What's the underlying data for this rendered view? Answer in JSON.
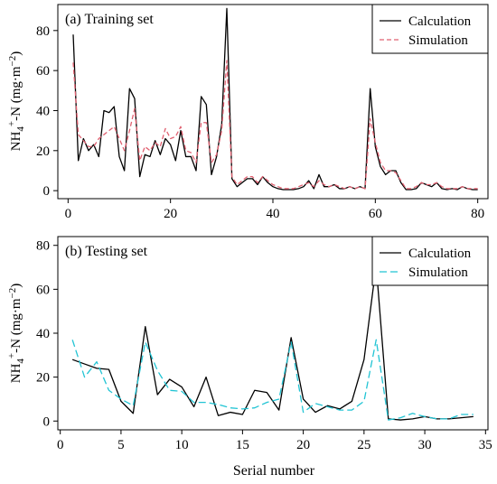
{
  "xlabel": "Serial number",
  "chart_data": [
    {
      "type": "line",
      "panel_label": "(a) Training set",
      "ylabel_parts": [
        "NH",
        "4",
        "+",
        "-N (mg·m",
        "−2",
        ")"
      ],
      "xlim": [
        -2,
        82
      ],
      "ylim": [
        -4,
        93
      ],
      "xticks": [
        0,
        20,
        40,
        60,
        80
      ],
      "yticks": [
        0,
        20,
        40,
        60,
        80
      ],
      "legend_position": "top-right",
      "series": [
        {
          "name": "Calculation",
          "color": "#000000",
          "dash": "",
          "x": [
            1,
            2,
            3,
            4,
            5,
            6,
            7,
            8,
            9,
            10,
            11,
            12,
            13,
            14,
            15,
            16,
            17,
            18,
            19,
            20,
            21,
            22,
            23,
            24,
            25,
            26,
            27,
            28,
            29,
            30,
            31,
            32,
            33,
            34,
            35,
            36,
            37,
            38,
            39,
            40,
            41,
            42,
            43,
            44,
            45,
            46,
            47,
            48,
            49,
            50,
            51,
            52,
            53,
            54,
            55,
            56,
            57,
            58,
            59,
            60,
            61,
            62,
            63,
            64,
            65,
            66,
            67,
            68,
            69,
            70,
            71,
            72,
            73,
            74,
            75,
            76,
            77,
            78,
            79,
            80
          ],
          "values": [
            78,
            15,
            26,
            20,
            23,
            17,
            40,
            39,
            42,
            17,
            10,
            51,
            46,
            7,
            18,
            17,
            25,
            18,
            26,
            23,
            15,
            30,
            17,
            17,
            10,
            47,
            43,
            8,
            17,
            33,
            91,
            6,
            2,
            4,
            6,
            6,
            3,
            7,
            4,
            2,
            1,
            0.5,
            0.5,
            0.5,
            1,
            2,
            5,
            1,
            8,
            2,
            2,
            3,
            1,
            1,
            2,
            1,
            2,
            1,
            51,
            22,
            12,
            8,
            10,
            10,
            4,
            0.5,
            0.5,
            1,
            4,
            3,
            2,
            4,
            1,
            0.5,
            1,
            0.5,
            2,
            1,
            0.5,
            0.5
          ]
        },
        {
          "name": "Simulation",
          "color": "#e06070",
          "dash": "5,3",
          "x": [
            1,
            2,
            3,
            4,
            5,
            6,
            7,
            8,
            9,
            10,
            11,
            12,
            13,
            14,
            15,
            16,
            17,
            18,
            19,
            20,
            21,
            22,
            23,
            24,
            25,
            26,
            27,
            28,
            29,
            30,
            31,
            32,
            33,
            34,
            35,
            36,
            37,
            38,
            39,
            40,
            41,
            42,
            43,
            44,
            45,
            46,
            47,
            48,
            49,
            50,
            51,
            52,
            53,
            54,
            55,
            56,
            57,
            58,
            59,
            60,
            61,
            62,
            63,
            64,
            65,
            66,
            67,
            68,
            69,
            70,
            71,
            72,
            73,
            74,
            75,
            76,
            77,
            78,
            79,
            80
          ],
          "values": [
            64,
            28,
            25,
            22,
            22,
            26,
            28,
            30,
            32,
            26,
            20,
            30,
            41,
            15,
            22,
            20,
            24,
            22,
            31,
            26,
            27,
            32,
            20,
            19,
            14,
            34,
            34,
            14,
            18,
            30,
            65,
            7,
            3,
            5,
            7,
            7,
            4,
            7,
            5,
            3,
            2,
            1,
            1,
            1,
            2,
            3,
            4,
            2,
            5,
            3,
            2,
            3,
            2,
            1,
            2,
            1,
            2,
            1,
            36,
            24,
            14,
            10,
            10,
            9,
            5,
            1,
            1,
            2,
            4,
            3,
            3,
            4,
            2,
            1,
            1,
            1,
            2,
            1,
            1,
            1
          ]
        }
      ]
    },
    {
      "type": "line",
      "panel_label": "(b) Testing set",
      "ylabel_parts": [
        "NH",
        "4",
        "+",
        "-N (mg·m",
        "−2",
        ")"
      ],
      "xlim": [
        -0.2,
        35.2
      ],
      "ylim": [
        -4,
        84
      ],
      "xticks": [
        0,
        5,
        10,
        15,
        20,
        25,
        30,
        35
      ],
      "yticks": [
        0,
        20,
        40,
        60,
        80
      ],
      "legend_position": "top-right",
      "series": [
        {
          "name": "Calculation",
          "color": "#000000",
          "dash": "",
          "x": [
            1,
            2,
            3,
            4,
            5,
            6,
            7,
            8,
            9,
            10,
            11,
            12,
            13,
            14,
            15,
            16,
            17,
            18,
            19,
            20,
            21,
            22,
            23,
            24,
            25,
            26,
            27,
            28,
            29,
            30,
            31,
            32,
            33,
            34
          ],
          "values": [
            28,
            26,
            24,
            23.5,
            9,
            3.5,
            43,
            12,
            19,
            15.5,
            6.5,
            20,
            2.5,
            4,
            3,
            14,
            13,
            5,
            38,
            10,
            4,
            7,
            5.5,
            9,
            28,
            71,
            1,
            0.5,
            1,
            2,
            1,
            1,
            1.5,
            2
          ]
        },
        {
          "name": "Simulation",
          "color": "#22c4d4",
          "dash": "8,4",
          "x": [
            1,
            2,
            3,
            4,
            5,
            6,
            7,
            8,
            9,
            10,
            11,
            12,
            13,
            14,
            15,
            16,
            17,
            18,
            19,
            20,
            21,
            22,
            23,
            24,
            25,
            26,
            27,
            28,
            29,
            30,
            31,
            32,
            33,
            34
          ],
          "values": [
            37,
            20,
            27,
            14,
            10,
            7,
            36,
            23,
            14,
            13.5,
            8.5,
            8.5,
            7.5,
            6,
            5.5,
            6,
            8.5,
            10,
            36,
            4,
            8,
            6.5,
            5,
            5,
            9,
            37,
            0.5,
            1.5,
            3.5,
            2,
            1,
            1,
            3,
            3
          ]
        }
      ]
    }
  ]
}
